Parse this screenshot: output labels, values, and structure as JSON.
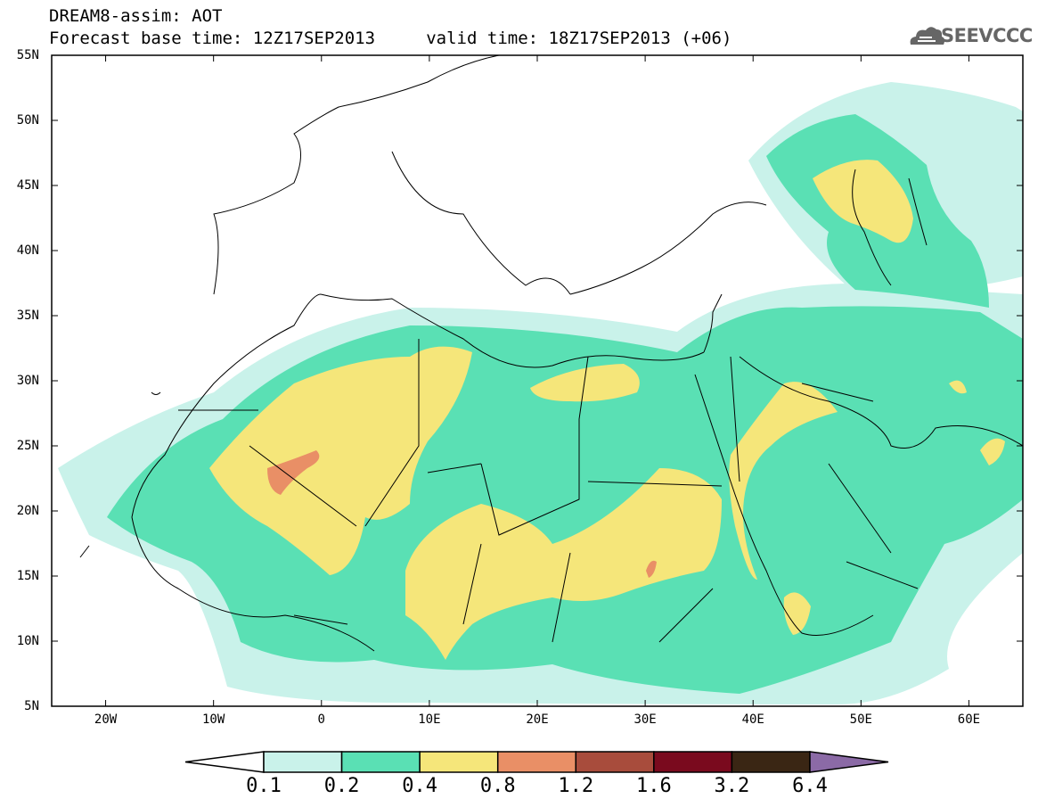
{
  "header": {
    "title_line1": "DREAM8-assim: AOT",
    "title_line2": "Forecast base time: 12Z17SEP2013     valid time: 18Z17SEP2013 (+06)",
    "logo_text": "SEEVCCC"
  },
  "map": {
    "lon_range": [
      -25,
      65
    ],
    "lat_range": [
      5,
      55
    ],
    "lat_labels": [
      {
        "lat": 55,
        "text": "55N"
      },
      {
        "lat": 50,
        "text": "50N"
      },
      {
        "lat": 45,
        "text": "45N"
      },
      {
        "lat": 40,
        "text": "40N"
      },
      {
        "lat": 35,
        "text": "35N"
      },
      {
        "lat": 30,
        "text": "30N"
      },
      {
        "lat": 25,
        "text": "25N"
      },
      {
        "lat": 20,
        "text": "20N"
      },
      {
        "lat": 15,
        "text": "15N"
      },
      {
        "lat": 10,
        "text": "10N"
      },
      {
        "lat": 5,
        "text": "5N"
      }
    ],
    "lon_labels": [
      {
        "lon": -20,
        "text": "20W"
      },
      {
        "lon": -10,
        "text": "10W"
      },
      {
        "lon": 0,
        "text": "0"
      },
      {
        "lon": 10,
        "text": "10E"
      },
      {
        "lon": 20,
        "text": "20E"
      },
      {
        "lon": 30,
        "text": "30E"
      },
      {
        "lon": 40,
        "text": "40E"
      },
      {
        "lon": 50,
        "text": "50E"
      },
      {
        "lon": 60,
        "text": "60E"
      }
    ]
  },
  "legend": {
    "colors": [
      "#ffffff",
      "#c9f2ea",
      "#5ae0b4",
      "#f5e67a",
      "#e98f66",
      "#a84c3c",
      "#7a0a1e",
      "#3a2614",
      "#8b6aa6"
    ],
    "labels": [
      "0.1",
      "0.2",
      "0.4",
      "0.8",
      "1.2",
      "1.6",
      "3.2",
      "6.4"
    ]
  }
}
